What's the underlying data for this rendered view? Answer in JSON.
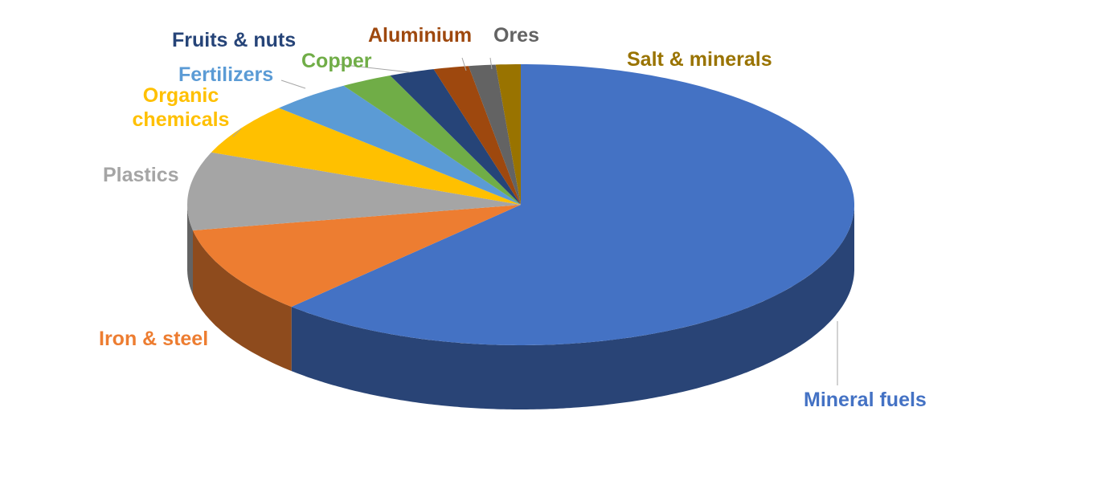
{
  "chart_data": {
    "type": "pie",
    "style": "3d",
    "title": "",
    "legend": "none",
    "slices": [
      {
        "label": "Mineral fuels",
        "value": 62,
        "color": "#4472C4"
      },
      {
        "label": "Iron & steel",
        "value": 10,
        "color": "#ED7D31"
      },
      {
        "label": "Plastics",
        "value": 9,
        "color": "#A5A5A5"
      },
      {
        "label": "Organic chemicals",
        "value": 6,
        "color": "#FFC000"
      },
      {
        "label": "Fertilizers",
        "value": 4,
        "color": "#5B9BD5"
      },
      {
        "label": "Copper",
        "value": 2.5,
        "color": "#70AD47"
      },
      {
        "label": "Fruits & nuts",
        "value": 2.2,
        "color": "#264478"
      },
      {
        "label": "Aluminium",
        "value": 1.7,
        "color": "#9E480E"
      },
      {
        "label": "Ores",
        "value": 1.3,
        "color": "#636363"
      },
      {
        "label": "Salt & minerals",
        "value": 1.2,
        "color": "#997300"
      }
    ]
  }
}
